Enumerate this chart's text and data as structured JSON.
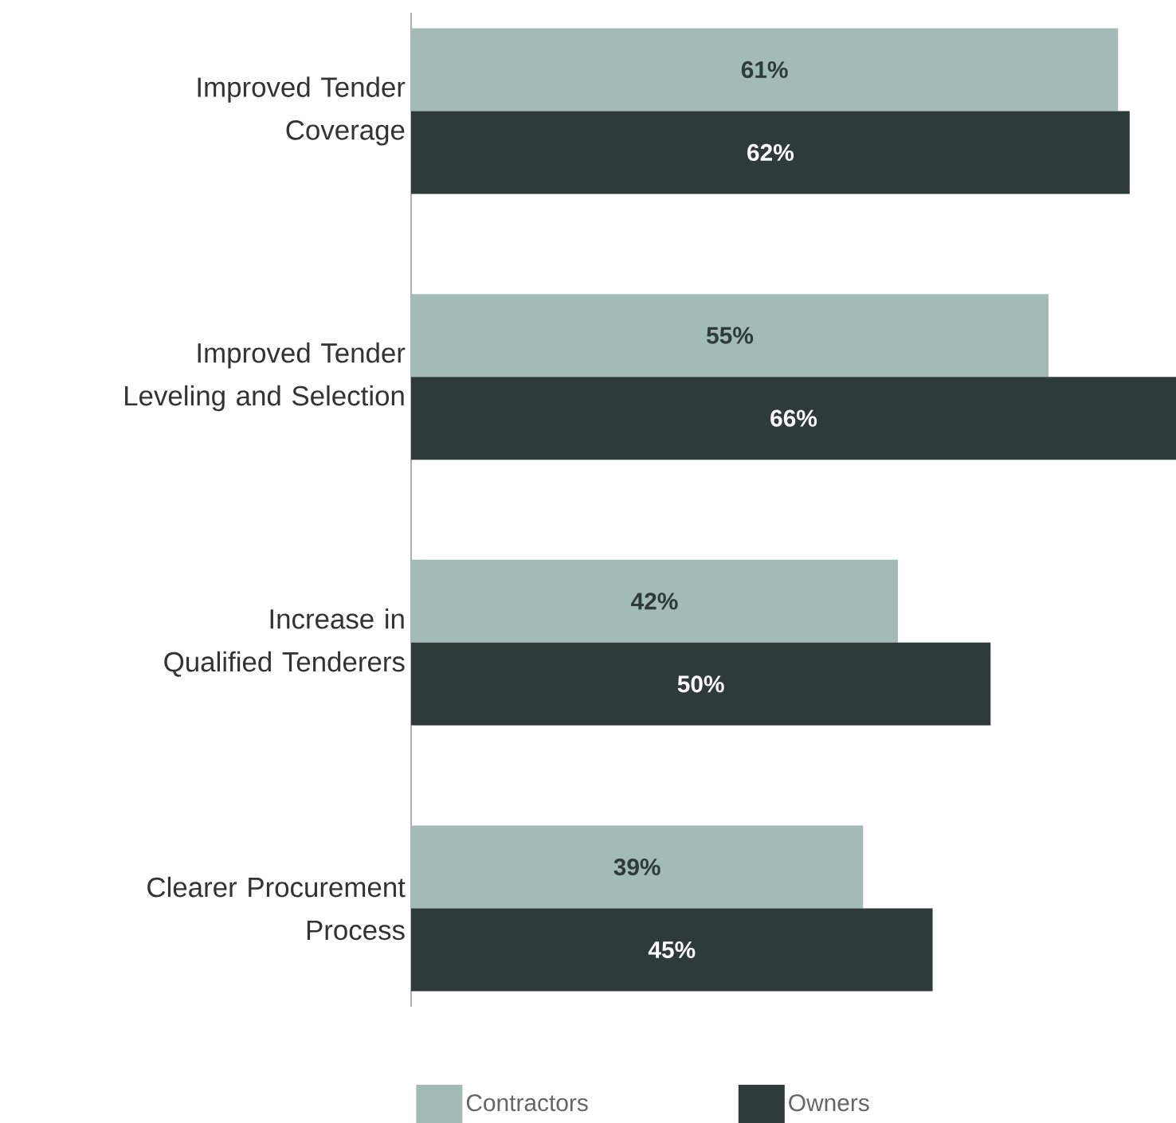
{
  "chart_data": {
    "type": "bar",
    "orientation": "horizontal",
    "categories": [
      "Improved Tender Coverage",
      "Improved Tender Leveling and Selection",
      "Increase in Qualified Tenderers",
      "Clearer Procurement Process"
    ],
    "series": [
      {
        "name": "Contractors",
        "color": "#a2bbb6",
        "values": [
          61,
          55,
          42,
          39
        ],
        "value_labels": [
          "61%",
          "55%",
          "42%",
          "39%"
        ]
      },
      {
        "name": "Owners",
        "color": "#2f3b39",
        "values": [
          62,
          66,
          50,
          45
        ],
        "value_labels": [
          "62%",
          "66%",
          "50%",
          "45%"
        ]
      }
    ],
    "legend": "bottom"
  }
}
